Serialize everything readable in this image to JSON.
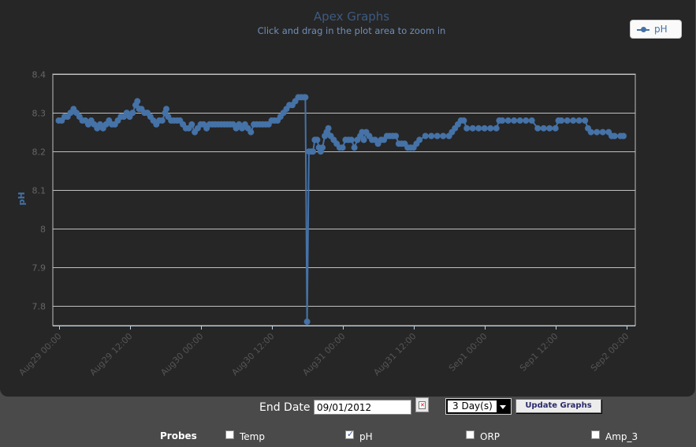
{
  "chart_data": {
    "type": "line",
    "title": "Apex Graphs",
    "subtitle": "Click and drag in the plot area to zoom in",
    "ylabel": "pH",
    "xlabel": "",
    "ylim": [
      7.75,
      8.4
    ],
    "y_ticks": [
      "8.4",
      "8.3",
      "8.2",
      "8.1",
      "8",
      "7.9",
      "7.8"
    ],
    "y_tick_values": [
      8.4,
      8.3,
      8.2,
      8.1,
      8.0,
      7.9,
      7.8
    ],
    "x_range_hours": [
      -1,
      97.5
    ],
    "x_ticks": [
      "Aug29 00:00",
      "Aug29 12:00",
      "Aug30 00:00",
      "Aug30 12:00",
      "Aug31 00:00",
      "Aug31 12:00",
      "Sep1 00:00",
      "Sep1 12:00",
      "Sep2 00:00"
    ],
    "x_tick_hours": [
      0,
      12,
      24,
      36,
      48,
      60,
      72,
      84,
      96
    ],
    "grid": true,
    "legend_position": "top-right",
    "series": [
      {
        "name": "pH",
        "color": "#4572a7",
        "points": [
          [
            0,
            8.28
          ],
          [
            0.5,
            8.28
          ],
          [
            1,
            8.29
          ],
          [
            1.5,
            8.29
          ],
          [
            2,
            8.3
          ],
          [
            2.5,
            8.31
          ],
          [
            3,
            8.3
          ],
          [
            3.5,
            8.29
          ],
          [
            4,
            8.28
          ],
          [
            4.5,
            8.28
          ],
          [
            5,
            8.27
          ],
          [
            5.5,
            8.28
          ],
          [
            6,
            8.27
          ],
          [
            6.5,
            8.26
          ],
          [
            7,
            8.27
          ],
          [
            7.5,
            8.26
          ],
          [
            8,
            8.27
          ],
          [
            8.5,
            8.28
          ],
          [
            9,
            8.27
          ],
          [
            9.5,
            8.27
          ],
          [
            10,
            8.28
          ],
          [
            10.5,
            8.29
          ],
          [
            11,
            8.29
          ],
          [
            11.5,
            8.3
          ],
          [
            12,
            8.29
          ],
          [
            12.5,
            8.3
          ],
          [
            13,
            8.32
          ],
          [
            13.3,
            8.33
          ],
          [
            13.6,
            8.31
          ],
          [
            14,
            8.31
          ],
          [
            14.5,
            8.3
          ],
          [
            15,
            8.3
          ],
          [
            15.5,
            8.29
          ],
          [
            16,
            8.28
          ],
          [
            16.5,
            8.27
          ],
          [
            17,
            8.28
          ],
          [
            17.5,
            8.28
          ],
          [
            18,
            8.3
          ],
          [
            18.2,
            8.31
          ],
          [
            18.5,
            8.29
          ],
          [
            19,
            8.28
          ],
          [
            19.5,
            8.28
          ],
          [
            20,
            8.28
          ],
          [
            20.5,
            8.28
          ],
          [
            21,
            8.27
          ],
          [
            21.5,
            8.26
          ],
          [
            22,
            8.26
          ],
          [
            22.5,
            8.27
          ],
          [
            23,
            8.25
          ],
          [
            23.5,
            8.26
          ],
          [
            24,
            8.27
          ],
          [
            24.5,
            8.27
          ],
          [
            25,
            8.26
          ],
          [
            25.5,
            8.27
          ],
          [
            26,
            8.27
          ],
          [
            26.5,
            8.27
          ],
          [
            27,
            8.27
          ],
          [
            27.5,
            8.27
          ],
          [
            28,
            8.27
          ],
          [
            28.5,
            8.27
          ],
          [
            29,
            8.27
          ],
          [
            29.5,
            8.27
          ],
          [
            30,
            8.26
          ],
          [
            30.5,
            8.27
          ],
          [
            31,
            8.26
          ],
          [
            31.5,
            8.27
          ],
          [
            32,
            8.26
          ],
          [
            32.5,
            8.25
          ],
          [
            33,
            8.27
          ],
          [
            33.5,
            8.27
          ],
          [
            34,
            8.27
          ],
          [
            34.5,
            8.27
          ],
          [
            35,
            8.27
          ],
          [
            35.5,
            8.27
          ],
          [
            36,
            8.28
          ],
          [
            36.5,
            8.28
          ],
          [
            37,
            8.28
          ],
          [
            37.5,
            8.29
          ],
          [
            38,
            8.3
          ],
          [
            38.5,
            8.31
          ],
          [
            39,
            8.32
          ],
          [
            39.5,
            8.32
          ],
          [
            40,
            8.33
          ],
          [
            40.5,
            8.34
          ],
          [
            41,
            8.34
          ],
          [
            41.5,
            8.34
          ],
          [
            41.7,
            8.34
          ],
          [
            42,
            7.76
          ],
          [
            42.3,
            8.2
          ],
          [
            42.7,
            8.2
          ],
          [
            43,
            8.2
          ],
          [
            43.3,
            8.23
          ],
          [
            43.7,
            8.23
          ],
          [
            44,
            8.21
          ],
          [
            44.3,
            8.2
          ],
          [
            44.6,
            8.21
          ],
          [
            45,
            8.24
          ],
          [
            45.3,
            8.25
          ],
          [
            45.6,
            8.26
          ],
          [
            46,
            8.24
          ],
          [
            46.5,
            8.23
          ],
          [
            47,
            8.22
          ],
          [
            47.5,
            8.21
          ],
          [
            48,
            8.21
          ],
          [
            48.5,
            8.23
          ],
          [
            49,
            8.23
          ],
          [
            49.5,
            8.23
          ],
          [
            50,
            8.21
          ],
          [
            50.5,
            8.23
          ],
          [
            51,
            8.24
          ],
          [
            51.3,
            8.25
          ],
          [
            51.6,
            8.23
          ],
          [
            52,
            8.25
          ],
          [
            52.5,
            8.24
          ],
          [
            53,
            8.23
          ],
          [
            53.5,
            8.23
          ],
          [
            54,
            8.22
          ],
          [
            54.5,
            8.23
          ],
          [
            55,
            8.23
          ],
          [
            55.5,
            8.24
          ],
          [
            56,
            8.24
          ],
          [
            56.5,
            8.24
          ],
          [
            57,
            8.24
          ],
          [
            57.5,
            8.22
          ],
          [
            58,
            8.22
          ],
          [
            58.5,
            8.22
          ],
          [
            59,
            8.21
          ],
          [
            59.5,
            8.21
          ],
          [
            60,
            8.21
          ],
          [
            60.5,
            8.22
          ],
          [
            61,
            8.23
          ],
          [
            62,
            8.24
          ],
          [
            63,
            8.24
          ],
          [
            64,
            8.24
          ],
          [
            65,
            8.24
          ],
          [
            66,
            8.24
          ],
          [
            66.5,
            8.25
          ],
          [
            67,
            8.26
          ],
          [
            67.5,
            8.27
          ],
          [
            68,
            8.28
          ],
          [
            68.5,
            8.28
          ],
          [
            69,
            8.26
          ],
          [
            70,
            8.26
          ],
          [
            71,
            8.26
          ],
          [
            72,
            8.26
          ],
          [
            73,
            8.26
          ],
          [
            74,
            8.26
          ],
          [
            74.5,
            8.28
          ],
          [
            75,
            8.28
          ],
          [
            76,
            8.28
          ],
          [
            77,
            8.28
          ],
          [
            78,
            8.28
          ],
          [
            79,
            8.28
          ],
          [
            80,
            8.28
          ],
          [
            81,
            8.26
          ],
          [
            82,
            8.26
          ],
          [
            83,
            8.26
          ],
          [
            84,
            8.26
          ],
          [
            84.5,
            8.28
          ],
          [
            85,
            8.28
          ],
          [
            86,
            8.28
          ],
          [
            87,
            8.28
          ],
          [
            88,
            8.28
          ],
          [
            89,
            8.28
          ],
          [
            89.5,
            8.26
          ],
          [
            90,
            8.25
          ],
          [
            91,
            8.25
          ],
          [
            92,
            8.25
          ],
          [
            93,
            8.25
          ],
          [
            93.5,
            8.24
          ],
          [
            94,
            8.24
          ],
          [
            95,
            8.24
          ],
          [
            95.5,
            8.24
          ]
        ]
      }
    ]
  },
  "legend": {
    "label": "pH"
  },
  "controls": {
    "end_date_label": "End Date",
    "end_date_value": "09/01/2012",
    "range_value": "3 Day(s)",
    "update_label": "Update Graphs"
  },
  "probes": {
    "label": "Probes",
    "items": [
      {
        "label": "Temp",
        "checked": false
      },
      {
        "label": "pH",
        "checked": true
      },
      {
        "label": "ORP",
        "checked": false
      },
      {
        "label": "Amp_3",
        "checked": false
      }
    ]
  },
  "colors": {
    "series": "#4572a7",
    "panel": "#262626",
    "page": "#4a4a4a",
    "title": "#3d5a80",
    "subtitle": "#6f8fb8"
  }
}
